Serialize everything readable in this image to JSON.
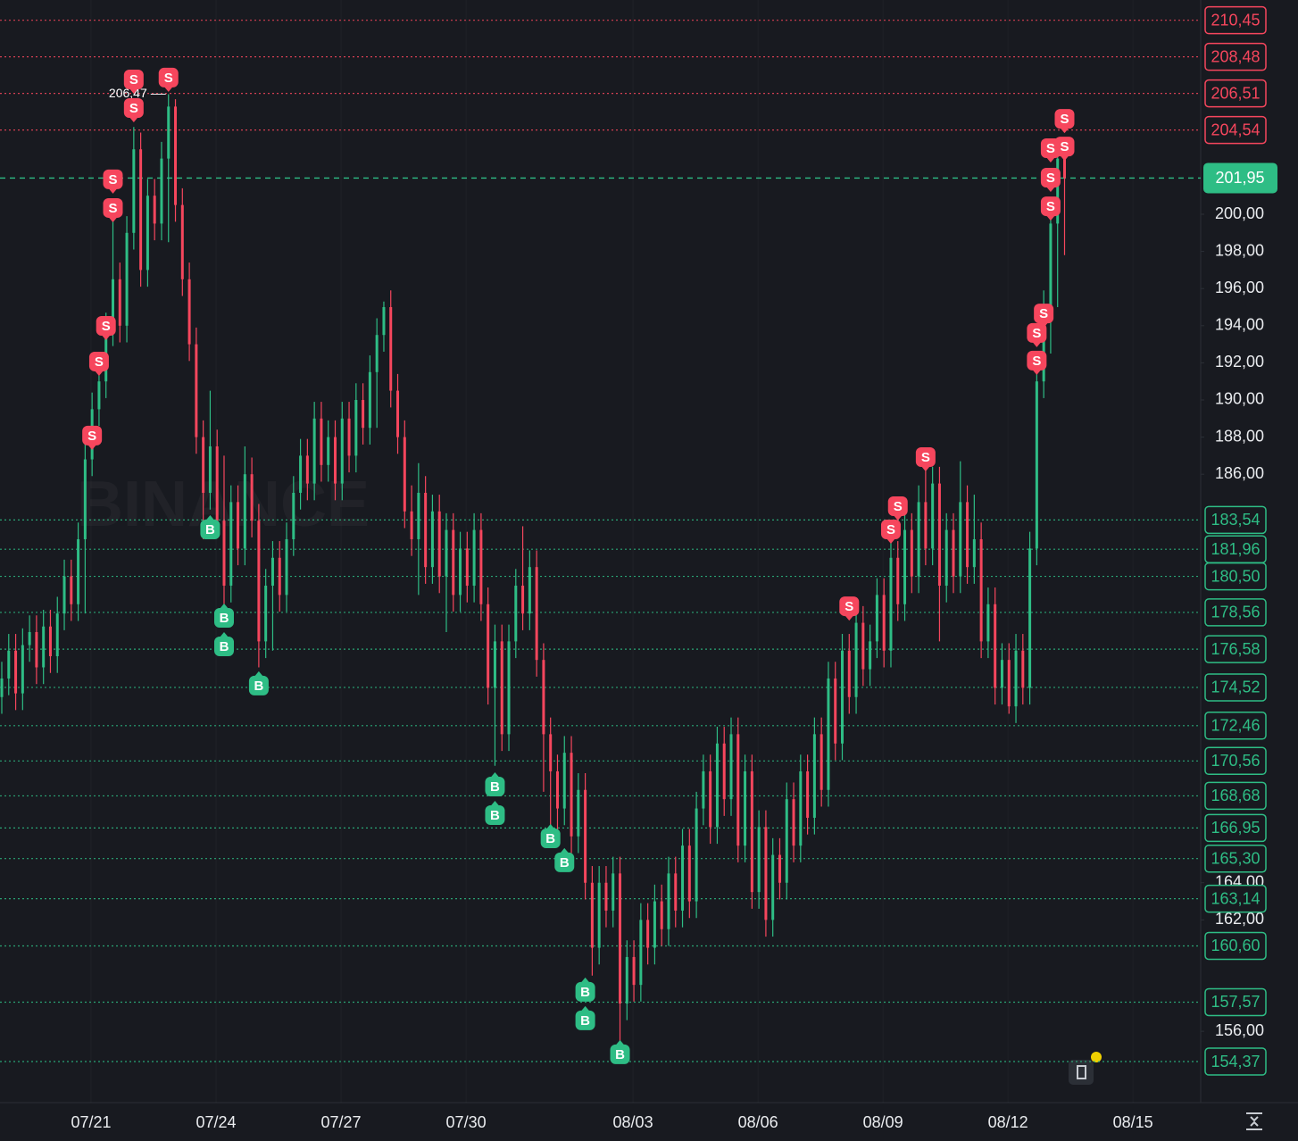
{
  "chart_data": {
    "type": "candlestick",
    "watermark": "BINANCE",
    "up_color": "#2ebd85",
    "down_color": "#f6465d",
    "xlim": [
      -0.257,
      172.6
    ],
    "xticks": [
      {
        "value": 12.85,
        "label": "07/21"
      },
      {
        "value": 30.85,
        "label": "07/24"
      },
      {
        "value": 48.84,
        "label": "07/27"
      },
      {
        "value": 66.84,
        "label": "07/30"
      },
      {
        "value": 90.87,
        "label": "08/03"
      },
      {
        "value": 108.87,
        "label": "08/06"
      },
      {
        "value": 126.86,
        "label": "08/09"
      },
      {
        "value": 144.86,
        "label": "08/12"
      },
      {
        "value": 162.85,
        "label": "08/15"
      }
    ],
    "ylim": [
      152.16,
      211.54
    ],
    "yticks": [
      {
        "value": 156,
        "label": "156,00"
      },
      {
        "value": 162,
        "label": "162,00"
      },
      {
        "value": 164,
        "label": "164,00"
      },
      {
        "value": 186,
        "label": "186,00"
      },
      {
        "value": 188,
        "label": "188,00"
      },
      {
        "value": 190,
        "label": "190,00"
      },
      {
        "value": 192,
        "label": "192,00"
      },
      {
        "value": 194,
        "label": "194,00"
      },
      {
        "value": 196,
        "label": "196,00"
      },
      {
        "value": 198,
        "label": "198,00"
      },
      {
        "value": 200,
        "label": "200,00"
      }
    ],
    "candles": {
      "open": [
        174,
        175,
        176.5,
        174.2,
        176.8,
        177.5,
        175.6,
        177.8,
        176.2,
        178.5,
        180.5,
        179,
        182.5,
        186.8,
        189.5,
        191,
        193.8,
        196.5,
        194,
        199,
        203.5,
        197,
        201,
        199.5,
        203,
        205.8,
        200.5,
        196.5,
        193,
        188,
        185,
        187.5,
        183.5,
        180,
        184.5,
        182,
        186,
        183.5,
        177,
        180,
        181.5,
        179.5,
        182.5,
        185,
        187,
        185.5,
        189,
        186.5,
        188,
        185.5,
        189,
        187,
        190,
        188.5,
        191.5,
        193.5,
        195,
        190.5,
        188,
        184,
        182.5,
        185,
        181,
        184,
        180.5,
        183,
        179.5,
        182,
        180,
        183,
        179,
        174.5,
        177,
        172,
        177,
        180,
        178.5,
        181,
        176,
        172,
        170,
        168,
        171,
        166.5,
        169,
        164,
        160.5,
        164,
        162.5,
        164.5,
        157.5,
        160,
        158.5,
        162,
        160.5,
        163,
        161.5,
        164.5,
        162.5,
        166,
        163,
        168,
        170,
        167,
        171.5,
        168.5,
        172,
        166,
        170,
        163.5,
        167,
        162,
        165.5,
        164,
        168.5,
        166,
        170,
        167.5,
        172,
        169,
        175,
        171.5,
        176.5,
        174,
        178,
        175.5,
        177,
        179.5,
        176.5,
        181.5,
        179,
        183,
        180.5,
        184.5,
        182,
        185.5,
        180,
        183,
        180.5,
        184.5,
        181,
        182.5,
        177,
        179,
        174.5,
        176,
        173.5,
        176.5,
        174.5,
        182,
        191,
        195,
        199.5,
        203
      ],
      "high": [
        175.9,
        177.4,
        177.4,
        177.7,
        178.4,
        178.4,
        178.7,
        178.7,
        179.4,
        181.4,
        181.4,
        183.4,
        187.9,
        190.4,
        191.9,
        194.7,
        199.7,
        197.4,
        199.9,
        204.7,
        204.4,
        201.9,
        201.9,
        203.9,
        206.47,
        206.2,
        201.4,
        197.4,
        193.9,
        188.9,
        190.5,
        188.4,
        187,
        185.4,
        185.4,
        187.5,
        186.9,
        184.4,
        180.9,
        182.4,
        182.4,
        183.4,
        185.9,
        187.9,
        187.9,
        189.9,
        189.9,
        188.9,
        188.9,
        189.9,
        189.9,
        190.9,
        190.9,
        192.4,
        194.4,
        195.3,
        195.9,
        191.4,
        188.9,
        185.4,
        186.6,
        185.9,
        184.9,
        184.9,
        183.9,
        183.9,
        182.9,
        182.9,
        183.9,
        183.9,
        179.9,
        177.9,
        177.9,
        177.9,
        180.9,
        183.2,
        181.9,
        181.9,
        176.9,
        172.9,
        170.9,
        171.9,
        171.9,
        169.9,
        169.9,
        164.9,
        164.9,
        164.9,
        165.4,
        165.4,
        160.9,
        160.9,
        162.9,
        162.9,
        163.9,
        163.9,
        165.4,
        165.4,
        166.9,
        166.9,
        168.9,
        170.9,
        170.9,
        172.4,
        172.4,
        172.9,
        172.9,
        170.9,
        170.9,
        167.9,
        167.9,
        166.4,
        166.4,
        169.4,
        169.4,
        170.9,
        170.9,
        172.9,
        172.9,
        175.9,
        175.9,
        177.4,
        177.4,
        178.9,
        178.9,
        177.9,
        180.4,
        180.4,
        182.4,
        182.4,
        183.9,
        183.9,
        185.4,
        186.6,
        186.4,
        186.4,
        183.9,
        183.9,
        186.7,
        185.4,
        184.9,
        183.4,
        179.9,
        179.9,
        176.9,
        176.9,
        177.4,
        177.4,
        182.9,
        191.9,
        195.9,
        200.4,
        203.9,
        203.9
      ],
      "low": [
        173.1,
        174.1,
        173.3,
        173.3,
        175.9,
        174.7,
        174.7,
        175.3,
        175.3,
        177.6,
        178.1,
        178.1,
        178.5,
        185.9,
        188.6,
        190.1,
        192.9,
        193.1,
        193.1,
        198.1,
        196.1,
        196.1,
        198.6,
        198.6,
        198.5,
        199.6,
        195.6,
        192.1,
        187.1,
        182.5,
        184.1,
        182.6,
        178.5,
        179.1,
        181.1,
        181.1,
        182.6,
        175.6,
        176.1,
        176.5,
        178.6,
        178.6,
        181.6,
        184.1,
        184.6,
        184.6,
        185.6,
        185.6,
        184.6,
        184.6,
        186.1,
        186.1,
        187.6,
        187.6,
        188.5,
        192.6,
        189.6,
        187.1,
        183.1,
        181.6,
        179.5,
        180.1,
        180.1,
        179.6,
        177.5,
        178.6,
        178.6,
        179.1,
        179.1,
        178.1,
        173.6,
        170.3,
        171.1,
        171.1,
        176.1,
        177.6,
        177.6,
        175.1,
        168.9,
        167.1,
        166.5,
        167.1,
        165.6,
        165.6,
        163.1,
        159,
        159.6,
        161.6,
        161.6,
        155.3,
        156.6,
        157.6,
        157.6,
        159.6,
        159.6,
        160.6,
        160.6,
        161.6,
        161.6,
        162.1,
        162.1,
        167.1,
        166.1,
        166.1,
        167.6,
        167.6,
        165.1,
        165.1,
        162.6,
        162.6,
        161.1,
        161.1,
        163.1,
        163.1,
        165.1,
        165.1,
        166.6,
        166.6,
        168.1,
        168.1,
        170.6,
        170.6,
        173.1,
        173.1,
        174.6,
        174.6,
        176.1,
        175.6,
        175.6,
        178.1,
        178.1,
        179.6,
        179.6,
        181.1,
        181.1,
        177,
        179.1,
        179.6,
        179.6,
        180.1,
        180.1,
        176.1,
        176.1,
        173.6,
        173.6,
        173.1,
        172.6,
        173.6,
        173.6,
        181.1,
        190.1,
        192.5,
        195,
        197.8
      ],
      "close": [
        175,
        176.5,
        174.2,
        176.8,
        177.5,
        175.6,
        177.8,
        176.2,
        178.5,
        180.5,
        179,
        182.5,
        186.8,
        189.5,
        191,
        193.8,
        196.5,
        194,
        199,
        203.5,
        197,
        201,
        199.5,
        203,
        205.8,
        200.5,
        196.5,
        193,
        188,
        185,
        187.5,
        183.5,
        180,
        184.5,
        182,
        186,
        183.5,
        177,
        180,
        181.5,
        179.5,
        182.5,
        185,
        187,
        185.5,
        189,
        186.5,
        188,
        185.5,
        189,
        187,
        190,
        188.5,
        191.5,
        193.5,
        195,
        190.5,
        188,
        184,
        182.5,
        185,
        181,
        184,
        180.5,
        183,
        179.5,
        182,
        180,
        183,
        179,
        174.5,
        177,
        172,
        177,
        180,
        178.5,
        181,
        176,
        172,
        170,
        168,
        171,
        166.5,
        169,
        164,
        160.5,
        164,
        162.5,
        164.5,
        157.5,
        160,
        158.5,
        162,
        160.5,
        163,
        161.5,
        164.5,
        162.5,
        166,
        163,
        168,
        170,
        167,
        171.5,
        168.5,
        172,
        166,
        170,
        163.5,
        167,
        162,
        165.5,
        164,
        168.5,
        166,
        170,
        167.5,
        172,
        169,
        175,
        171.5,
        176.5,
        174,
        178,
        175.5,
        177,
        179.5,
        176.5,
        181.5,
        179,
        183,
        180.5,
        184.5,
        182,
        185.5,
        180,
        183,
        180.5,
        184.5,
        181,
        182.5,
        177,
        179,
        174.5,
        176,
        173.5,
        176.5,
        174.5,
        182,
        191,
        195,
        199.5,
        203,
        201.95
      ]
    },
    "sell_signals": {
      "label": "S",
      "color": "#f6465d",
      "x": [
        13,
        14,
        15,
        16,
        16,
        19,
        19,
        24,
        122,
        128,
        129,
        133,
        149,
        149,
        150,
        151,
        151,
        151,
        153,
        153
      ],
      "y": [
        188.08,
        192.07,
        193.99,
        200.34,
        201.88,
        205.72,
        207.26,
        207.36,
        178.89,
        183.03,
        184.28,
        186.92,
        192.12,
        193.61,
        194.66,
        200.43,
        201.97,
        203.56,
        203.65,
        205.14
      ]
    },
    "buy_signals": {
      "label": "B",
      "color": "#2ebd85",
      "x": [
        30,
        32,
        32,
        37,
        71,
        71,
        79,
        81,
        84,
        84,
        89
      ],
      "y": [
        183.03,
        178.27,
        176.73,
        174.62,
        169.18,
        167.64,
        166.39,
        165.1,
        158.13,
        156.59,
        154.76
      ]
    },
    "sell_levels": {
      "color": "#f6465d",
      "values": [
        210.45,
        208.48,
        206.51,
        204.54
      ],
      "value_labels": [
        "210,45",
        "208,48",
        "206,51",
        "204,54"
      ]
    },
    "buy_levels": {
      "color": "#2ebd85",
      "values": [
        183.54,
        181.96,
        180.5,
        178.56,
        176.58,
        174.52,
        172.46,
        170.56,
        168.68,
        166.95,
        165.3,
        163.14,
        160.6,
        157.57,
        154.37
      ],
      "value_labels": [
        "183,54",
        "181,96",
        "180,50",
        "178,56",
        "176,58",
        "174,52",
        "172,46",
        "170,56",
        "168,68",
        "166,95",
        "165,30",
        "163,14",
        "160,60",
        "157,57",
        "154,37"
      ]
    },
    "last_price": {
      "value": 201.95,
      "label": "201,95",
      "color": "#2ebd85"
    },
    "high_annotation": {
      "x": 24,
      "value": 206.47,
      "label": "206,47"
    }
  }
}
